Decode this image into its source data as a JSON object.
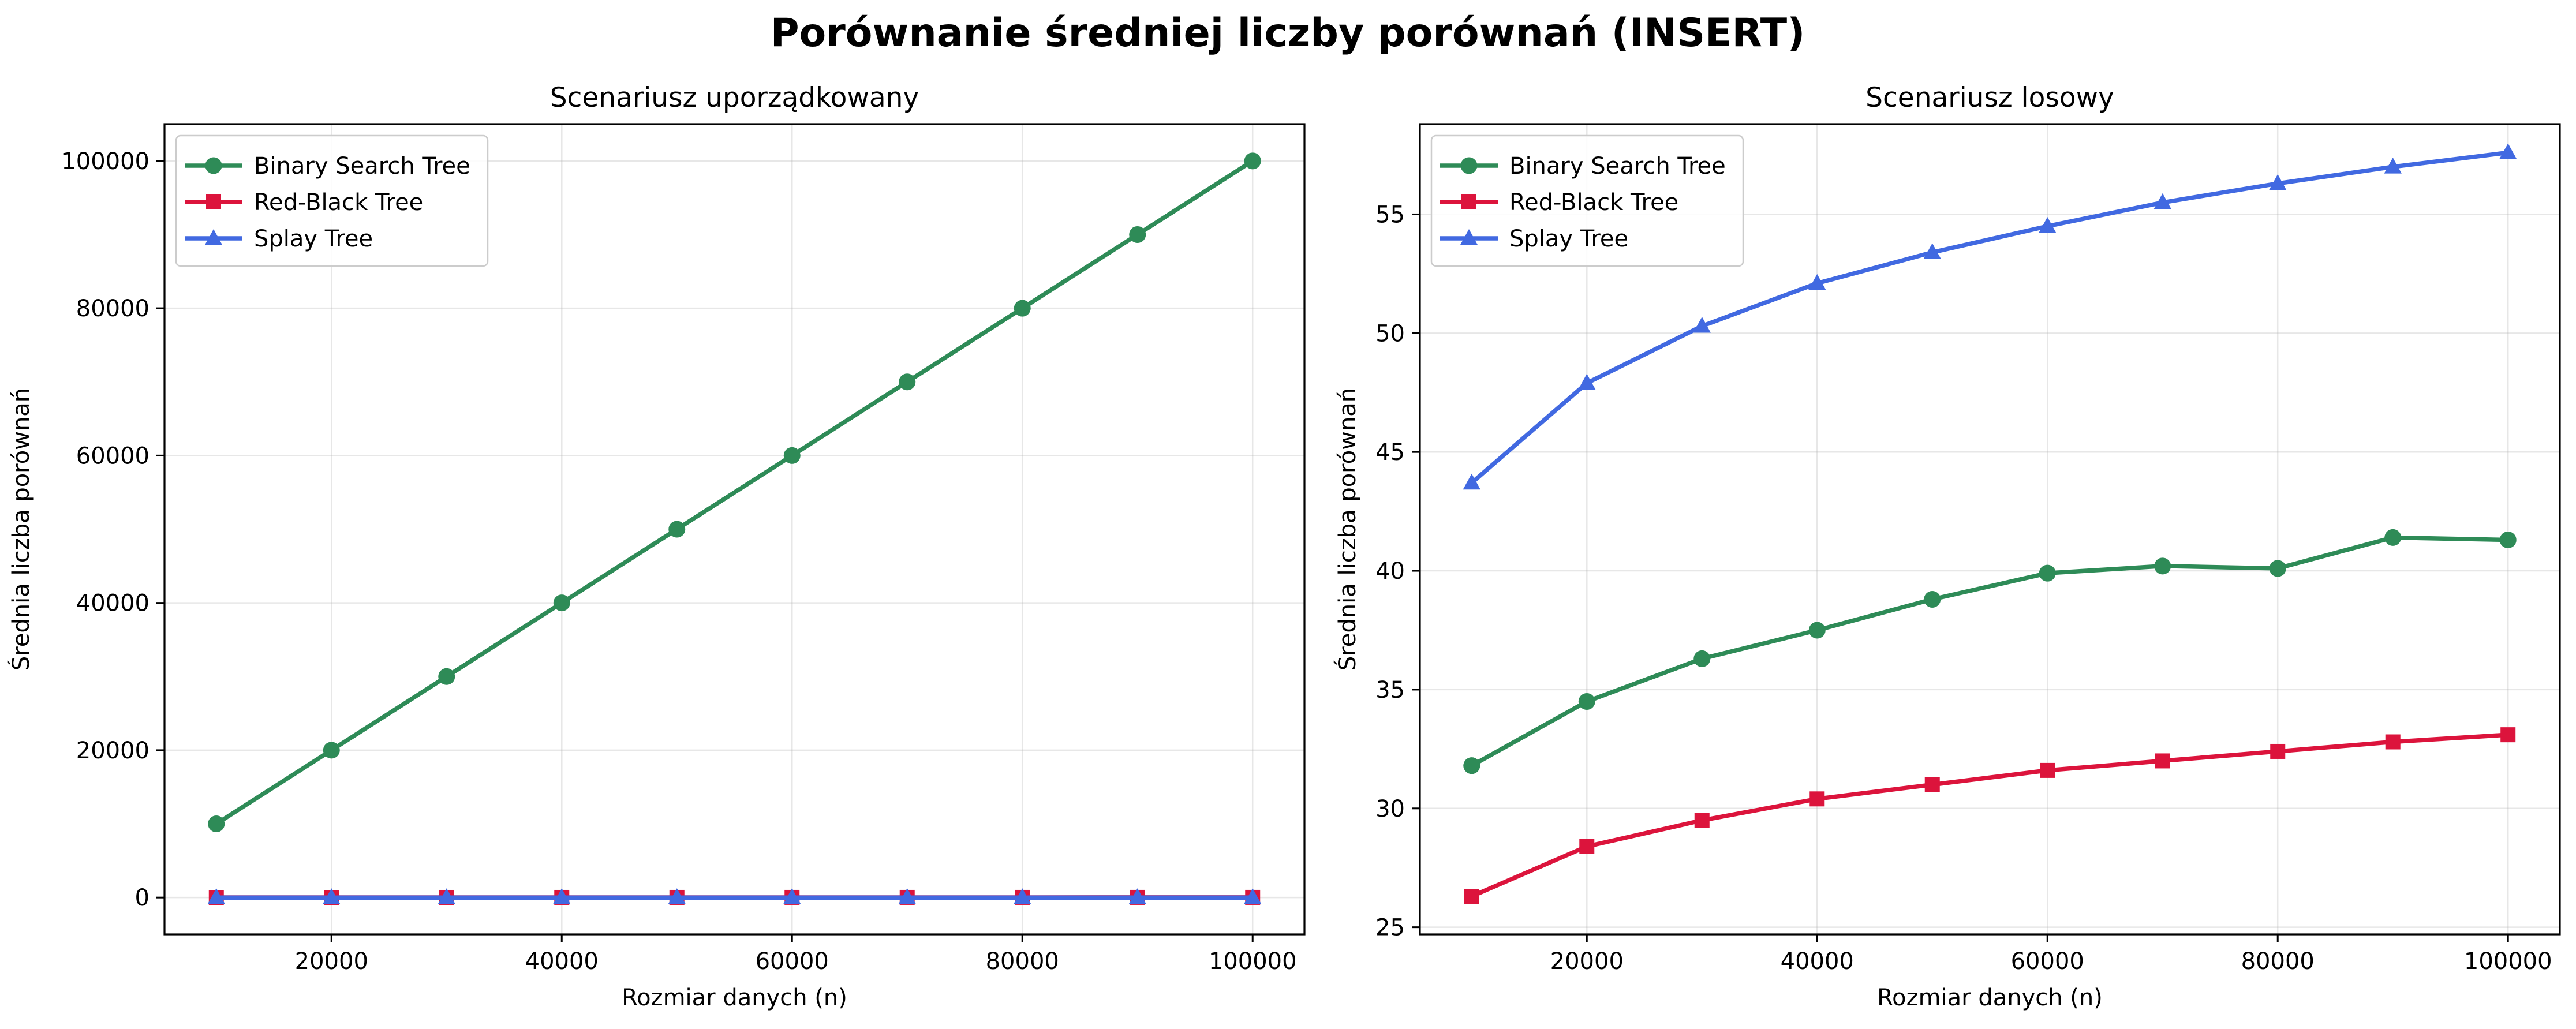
{
  "figure_title": "Porównanie średniej liczby porównań (INSERT)",
  "colors": {
    "bst": "#2e8b57",
    "rbt": "#dc143c",
    "splay": "#4169e1"
  },
  "chart_data": [
    {
      "type": "line",
      "title": "Scenariusz uporządkowany",
      "xlabel": "Rozmiar danych (n)",
      "ylabel": "Średnia liczba porównań",
      "xlim": [
        5500,
        104500
      ],
      "ylim": [
        -5000,
        105000
      ],
      "xticks": [
        20000,
        40000,
        60000,
        80000,
        100000
      ],
      "yticks": [
        0,
        20000,
        40000,
        60000,
        80000,
        100000
      ],
      "grid": true,
      "legend_position": "upper-left",
      "x": [
        10000,
        20000,
        30000,
        40000,
        50000,
        60000,
        70000,
        80000,
        90000,
        100000
      ],
      "series": [
        {
          "name": "Binary Search Tree",
          "color": "#2e8b57",
          "marker": "circle",
          "values": [
            10000,
            20000,
            30000,
            40000,
            50000,
            60000,
            70000,
            80000,
            90000,
            100000
          ]
        },
        {
          "name": "Red-Black Tree",
          "color": "#dc143c",
          "marker": "square",
          "values": [
            12,
            14,
            15,
            16,
            17,
            18,
            18,
            18,
            19,
            19
          ]
        },
        {
          "name": "Splay Tree",
          "color": "#4169e1",
          "marker": "triangle",
          "values": [
            2,
            2,
            2,
            2,
            2,
            2,
            2,
            2,
            2,
            2
          ]
        }
      ]
    },
    {
      "type": "line",
      "title": "Scenariusz losowy",
      "xlabel": "Rozmiar danych (n)",
      "ylabel": "Średnia liczba porównań",
      "xlim": [
        5500,
        104500
      ],
      "ylim": [
        24.7,
        58.8
      ],
      "xticks": [
        20000,
        40000,
        60000,
        80000,
        100000
      ],
      "yticks": [
        25,
        30,
        35,
        40,
        45,
        50,
        55
      ],
      "grid": true,
      "legend_position": "upper-left",
      "x": [
        10000,
        20000,
        30000,
        40000,
        50000,
        60000,
        70000,
        80000,
        90000,
        100000
      ],
      "series": [
        {
          "name": "Binary Search Tree",
          "color": "#2e8b57",
          "marker": "circle",
          "values": [
            31.8,
            34.5,
            36.3,
            37.5,
            38.8,
            39.9,
            40.2,
            40.1,
            41.4,
            41.3
          ]
        },
        {
          "name": "Red-Black Tree",
          "color": "#dc143c",
          "marker": "square",
          "values": [
            26.3,
            28.4,
            29.5,
            30.4,
            31.0,
            31.6,
            32.0,
            32.4,
            32.8,
            33.1
          ]
        },
        {
          "name": "Splay Tree",
          "color": "#4169e1",
          "marker": "triangle",
          "values": [
            43.7,
            47.9,
            50.3,
            52.1,
            53.4,
            54.5,
            55.5,
            56.3,
            57.0,
            57.6
          ]
        }
      ]
    }
  ]
}
